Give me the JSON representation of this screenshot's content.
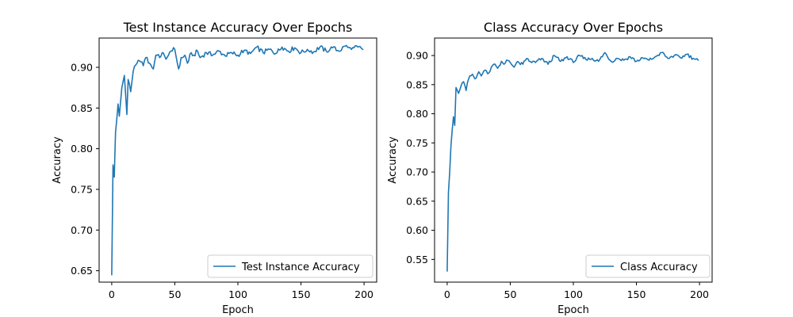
{
  "chart_data": [
    {
      "type": "line",
      "title": "Test Instance Accuracy Over Epochs",
      "xlabel": "Epoch",
      "ylabel": "Accuracy",
      "xlim": [
        -10,
        210
      ],
      "ylim": [
        0.636,
        0.936
      ],
      "xticks": [
        0,
        50,
        100,
        150,
        200
      ],
      "yticks": [
        0.65,
        0.7,
        0.75,
        0.8,
        0.85,
        0.9
      ],
      "ytick_labels": [
        "0.65",
        "0.70",
        "0.75",
        "0.80",
        "0.85",
        "0.90"
      ],
      "legend_position": "lower-right",
      "series": [
        {
          "name": "Test Instance Accuracy",
          "color": "#1f77b4",
          "anchors": [
            [
              0,
              0.645
            ],
            [
              1,
              0.78
            ],
            [
              2,
              0.765
            ],
            [
              3,
              0.82
            ],
            [
              5,
              0.855
            ],
            [
              6,
              0.84
            ],
            [
              8,
              0.875
            ],
            [
              10,
              0.89
            ],
            [
              12,
              0.842
            ],
            [
              13,
              0.885
            ],
            [
              15,
              0.87
            ],
            [
              17,
              0.895
            ],
            [
              20,
              0.905
            ],
            [
              22,
              0.908
            ],
            [
              25,
              0.902
            ],
            [
              27,
              0.912
            ],
            [
              30,
              0.905
            ],
            [
              33,
              0.898
            ],
            [
              35,
              0.915
            ],
            [
              38,
              0.912
            ],
            [
              40,
              0.918
            ],
            [
              43,
              0.91
            ],
            [
              45,
              0.915
            ],
            [
              47,
              0.92
            ],
            [
              50,
              0.922
            ],
            [
              52,
              0.905
            ],
            [
              53,
              0.898
            ],
            [
              55,
              0.912
            ],
            [
              58,
              0.915
            ],
            [
              60,
              0.905
            ],
            [
              63,
              0.918
            ],
            [
              65,
              0.915
            ],
            [
              68,
              0.92
            ],
            [
              70,
              0.912
            ],
            [
              75,
              0.918
            ],
            [
              80,
              0.915
            ],
            [
              85,
              0.92
            ],
            [
              90,
              0.914
            ],
            [
              95,
              0.918
            ],
            [
              100,
              0.915
            ],
            [
              105,
              0.921
            ],
            [
              110,
              0.917
            ],
            [
              115,
              0.925
            ],
            [
              120,
              0.918
            ],
            [
              125,
              0.922
            ],
            [
              130,
              0.917
            ],
            [
              135,
              0.925
            ],
            [
              140,
              0.92
            ],
            [
              145,
              0.924
            ],
            [
              150,
              0.918
            ],
            [
              155,
              0.922
            ],
            [
              160,
              0.919
            ],
            [
              165,
              0.925
            ],
            [
              170,
              0.92
            ],
            [
              175,
              0.924
            ],
            [
              180,
              0.92
            ],
            [
              185,
              0.926
            ],
            [
              190,
              0.922
            ],
            [
              195,
              0.925
            ],
            [
              199,
              0.922
            ]
          ]
        }
      ]
    },
    {
      "type": "line",
      "title": "Class Accuracy Over Epochs",
      "xlabel": "Epoch",
      "ylabel": "Accuracy",
      "xlim": [
        -10,
        210
      ],
      "ylim": [
        0.511,
        0.93
      ],
      "xticks": [
        0,
        50,
        100,
        150,
        200
      ],
      "yticks": [
        0.55,
        0.6,
        0.65,
        0.7,
        0.75,
        0.8,
        0.85,
        0.9
      ],
      "ytick_labels": [
        "0.55",
        "0.60",
        "0.65",
        "0.70",
        "0.75",
        "0.80",
        "0.85",
        "0.90"
      ],
      "legend_position": "lower-right",
      "series": [
        {
          "name": "Class Accuracy",
          "color": "#1f77b4",
          "anchors": [
            [
              0,
              0.53
            ],
            [
              1,
              0.665
            ],
            [
              2,
              0.7
            ],
            [
              3,
              0.745
            ],
            [
              5,
              0.795
            ],
            [
              6,
              0.78
            ],
            [
              7,
              0.845
            ],
            [
              9,
              0.835
            ],
            [
              11,
              0.848
            ],
            [
              13,
              0.855
            ],
            [
              15,
              0.84
            ],
            [
              17,
              0.86
            ],
            [
              20,
              0.868
            ],
            [
              22,
              0.86
            ],
            [
              25,
              0.872
            ],
            [
              27,
              0.865
            ],
            [
              30,
              0.875
            ],
            [
              33,
              0.87
            ],
            [
              35,
              0.88
            ],
            [
              38,
              0.885
            ],
            [
              40,
              0.878
            ],
            [
              43,
              0.89
            ],
            [
              45,
              0.885
            ],
            [
              47,
              0.892
            ],
            [
              50,
              0.888
            ],
            [
              53,
              0.88
            ],
            [
              55,
              0.888
            ],
            [
              60,
              0.885
            ],
            [
              63,
              0.895
            ],
            [
              65,
              0.89
            ],
            [
              70,
              0.888
            ],
            [
              75,
              0.895
            ],
            [
              80,
              0.885
            ],
            [
              85,
              0.9
            ],
            [
              90,
              0.89
            ],
            [
              95,
              0.898
            ],
            [
              100,
              0.888
            ],
            [
              105,
              0.9
            ],
            [
              110,
              0.893
            ],
            [
              115,
              0.895
            ],
            [
              120,
              0.89
            ],
            [
              125,
              0.905
            ],
            [
              130,
              0.89
            ],
            [
              135,
              0.895
            ],
            [
              140,
              0.892
            ],
            [
              145,
              0.898
            ],
            [
              150,
              0.89
            ],
            [
              155,
              0.896
            ],
            [
              160,
              0.892
            ],
            [
              165,
              0.898
            ],
            [
              170,
              0.905
            ],
            [
              175,
              0.895
            ],
            [
              180,
              0.9
            ],
            [
              185,
              0.896
            ],
            [
              190,
              0.902
            ],
            [
              195,
              0.895
            ],
            [
              199,
              0.892
            ]
          ]
        }
      ]
    }
  ]
}
